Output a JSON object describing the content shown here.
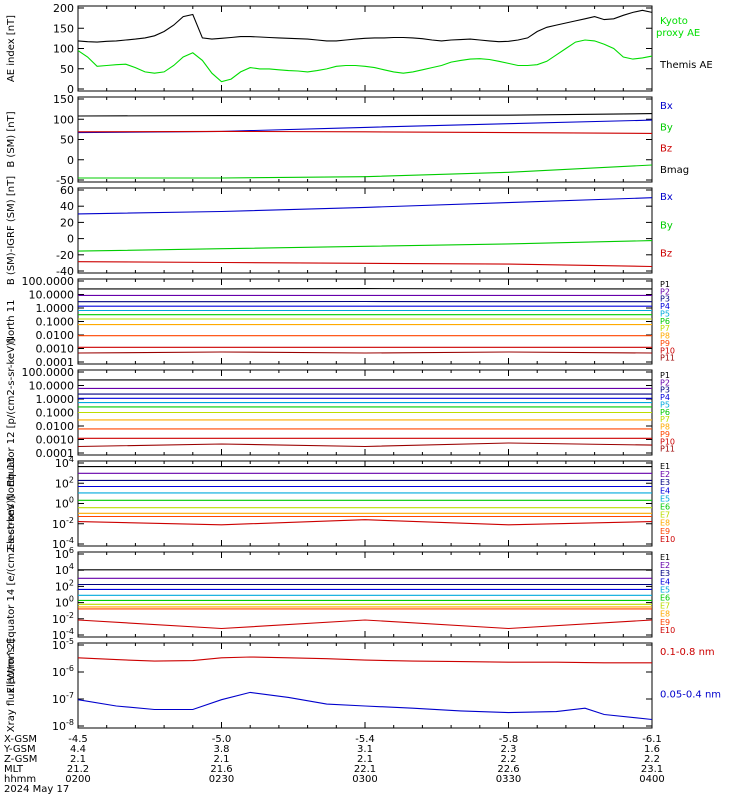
{
  "chart_data": [
    {
      "type": "line",
      "ylabel": "AE index [nT]",
      "yticks": [
        "200",
        "150",
        "100",
        "50",
        "0"
      ],
      "ylim": [
        0,
        200
      ],
      "series": [
        {
          "name": "Kyoto proxy AE",
          "color": "#00dd00",
          "x": [
            0,
            2,
            4,
            6,
            8,
            10,
            12,
            14,
            16,
            18,
            20,
            22,
            24,
            26,
            28,
            30,
            32,
            34,
            36,
            38,
            40,
            42,
            44,
            46,
            48,
            50,
            52,
            54,
            56,
            58,
            60,
            62,
            64,
            66,
            68,
            70,
            72,
            74,
            76,
            78,
            80,
            82,
            84,
            86,
            88,
            90,
            92,
            94,
            96,
            98,
            100,
            102,
            104,
            106,
            108,
            110,
            112,
            114,
            116,
            118,
            120
          ],
          "values": [
            95,
            80,
            58,
            60,
            62,
            63,
            55,
            45,
            42,
            45,
            60,
            80,
            90,
            72,
            42,
            22,
            28,
            45,
            55,
            52,
            52,
            50,
            48,
            47,
            45,
            48,
            52,
            58,
            60,
            60,
            58,
            55,
            50,
            45,
            42,
            45,
            50,
            55,
            60,
            68,
            72,
            75,
            76,
            74,
            70,
            65,
            60,
            60,
            62,
            70,
            85,
            100,
            115,
            120,
            118,
            110,
            100,
            80,
            75,
            78,
            82
          ]
        },
        {
          "name": "Themis AE",
          "color": "#000000",
          "x": [
            0,
            2,
            4,
            6,
            8,
            10,
            12,
            14,
            16,
            18,
            20,
            22,
            24,
            26,
            28,
            30,
            32,
            34,
            36,
            38,
            40,
            42,
            44,
            46,
            48,
            50,
            52,
            54,
            56,
            58,
            60,
            62,
            64,
            66,
            68,
            70,
            72,
            74,
            76,
            78,
            80,
            82,
            84,
            86,
            88,
            90,
            92,
            94,
            96,
            98,
            100,
            102,
            104,
            106,
            108,
            110,
            112,
            114,
            116,
            118,
            120
          ],
          "values": [
            118,
            116,
            115,
            117,
            118,
            120,
            122,
            125,
            130,
            140,
            155,
            175,
            180,
            125,
            122,
            124,
            126,
            128,
            128,
            127,
            126,
            125,
            124,
            123,
            122,
            120,
            118,
            118,
            120,
            122,
            124,
            125,
            125,
            126,
            126,
            125,
            123,
            120,
            118,
            120,
            121,
            122,
            120,
            118,
            116,
            117,
            120,
            125,
            140,
            150,
            155,
            160,
            165,
            170,
            175,
            168,
            170,
            178,
            185,
            190,
            185
          ]
        }
      ]
    },
    {
      "type": "line",
      "ylabel": "B (SM) [nT]",
      "yticks": [
        "150",
        "100",
        "50",
        "0",
        "-50"
      ],
      "ylim": [
        -60,
        150
      ],
      "series": [
        {
          "name": "Bx",
          "color": "#0000cc",
          "x": [
            0,
            30,
            60,
            90,
            120
          ],
          "values": [
            62,
            65,
            75,
            84,
            93
          ]
        },
        {
          "name": "By",
          "color": "#00cc00",
          "x": [
            0,
            30,
            60,
            90,
            120
          ],
          "values": [
            -50,
            -50,
            -47,
            -36,
            -18
          ]
        },
        {
          "name": "Bz",
          "color": "#cc0000",
          "x": [
            0,
            30,
            60,
            90,
            120
          ],
          "values": [
            64,
            65,
            64,
            62,
            60
          ]
        },
        {
          "name": "Bmag",
          "color": "#000000",
          "x": [
            0,
            30,
            60,
            90,
            120
          ],
          "values": [
            103,
            104,
            104,
            105,
            109
          ]
        }
      ]
    },
    {
      "type": "line",
      "ylabel": "B (SM)-IGRF (SM) [nT]",
      "yticks": [
        "60",
        "40",
        "20",
        "0",
        "-20",
        "-40"
      ],
      "ylim": [
        -45,
        60
      ],
      "series": [
        {
          "name": "Bx",
          "color": "#0000cc",
          "x": [
            0,
            30,
            60,
            90,
            120
          ],
          "values": [
            28,
            31,
            36,
            42,
            48
          ]
        },
        {
          "name": "By",
          "color": "#00cc00",
          "x": [
            0,
            30,
            60,
            90,
            120
          ],
          "values": [
            -18,
            -15,
            -12,
            -9,
            -5
          ]
        },
        {
          "name": "Bz",
          "color": "#cc0000",
          "x": [
            0,
            30,
            60,
            90,
            120
          ],
          "values": [
            -31,
            -32,
            -33,
            -34,
            -37
          ]
        }
      ]
    },
    {
      "type": "line",
      "ylabel": "North 11",
      "yscale": "log",
      "yticks": [
        "100.0000",
        "10.0000",
        "1.0000",
        "0.1000",
        "0.0100",
        "0.0010",
        "0.0001"
      ],
      "ylim": [
        0.0001,
        100
      ],
      "series": [
        {
          "name": "P1",
          "color": "#000000",
          "values": [
            20,
            20,
            21,
            20,
            20
          ]
        },
        {
          "name": "P2",
          "color": "#6600aa",
          "values": [
            7,
            7,
            7,
            7,
            7
          ]
        },
        {
          "name": "P3",
          "color": "#000080",
          "values": [
            2.5,
            2.5,
            2.6,
            2.5,
            2.5
          ]
        },
        {
          "name": "P4",
          "color": "#0000dd",
          "values": [
            1.2,
            1.2,
            1.2,
            1.2,
            1.2
          ]
        },
        {
          "name": "P5",
          "color": "#00aadd",
          "values": [
            0.6,
            0.6,
            0.6,
            0.6,
            0.6
          ]
        },
        {
          "name": "P6",
          "color": "#00cc00",
          "values": [
            0.3,
            0.3,
            0.3,
            0.3,
            0.3
          ]
        },
        {
          "name": "P7",
          "color": "#bbdd00",
          "values": [
            0.15,
            0.15,
            0.15,
            0.15,
            0.15
          ]
        },
        {
          "name": "P8",
          "color": "#ffaa00",
          "values": [
            0.06,
            0.06,
            0.06,
            0.06,
            0.06
          ]
        },
        {
          "name": "P9",
          "color": "#ff4400",
          "values": [
            0.01,
            0.01,
            0.01,
            0.01,
            0.01
          ]
        },
        {
          "name": "P10",
          "color": "#cc0000",
          "values": [
            0.0015,
            0.0015,
            0.0015,
            0.0015,
            0.0015
          ]
        },
        {
          "name": "P11",
          "color": "#990000",
          "values": [
            0.0006,
            0.0007,
            0.0006,
            0.0007,
            0.0006
          ]
        }
      ]
    },
    {
      "type": "line",
      "ylabel": "Equator 12 [p/(cm2-s-sr-keV)]",
      "yscale": "log",
      "yticks": [
        "100.0000",
        "10.0000",
        "1.0000",
        "0.1000",
        "0.0100",
        "0.0010",
        "0.0001"
      ],
      "ylim": [
        0.0001,
        100
      ],
      "series": [
        {
          "name": "P1",
          "color": "#000000",
          "values": [
            20,
            20,
            20,
            20,
            20
          ]
        },
        {
          "name": "P2",
          "color": "#6600aa",
          "values": [
            5,
            5,
            5,
            5,
            5
          ]
        },
        {
          "name": "P3",
          "color": "#000080",
          "values": [
            2,
            2,
            2,
            2,
            2
          ]
        },
        {
          "name": "P4",
          "color": "#0000dd",
          "values": [
            1,
            1,
            1,
            1,
            1
          ]
        },
        {
          "name": "P5",
          "color": "#00aadd",
          "values": [
            0.5,
            0.5,
            0.5,
            0.5,
            0.5
          ]
        },
        {
          "name": "P6",
          "color": "#00cc00",
          "values": [
            0.25,
            0.25,
            0.25,
            0.25,
            0.25
          ]
        },
        {
          "name": "P7",
          "color": "#bbdd00",
          "values": [
            0.1,
            0.1,
            0.1,
            0.1,
            0.1
          ]
        },
        {
          "name": "P8",
          "color": "#ffaa00",
          "values": [
            0.03,
            0.03,
            0.03,
            0.03,
            0.03
          ]
        },
        {
          "name": "P9",
          "color": "#ff4400",
          "values": [
            0.007,
            0.007,
            0.007,
            0.007,
            0.007
          ]
        },
        {
          "name": "P10",
          "color": "#cc0000",
          "values": [
            0.0015,
            0.0015,
            0.0015,
            0.0015,
            0.0015
          ]
        },
        {
          "name": "P11",
          "color": "#990000",
          "values": [
            0.0004,
            0.0006,
            0.0004,
            0.0007,
            0.0005
          ]
        }
      ]
    },
    {
      "type": "line",
      "ylabel": "Electrons North 13",
      "yscale": "log",
      "yticks": [
        "10^4",
        "10^2",
        "10^0",
        "10^-2",
        "10^-4"
      ],
      "ylim": [
        0.0001,
        10000
      ],
      "series": [
        {
          "name": "E1",
          "color": "#000000",
          "values": [
            3000,
            3000,
            3000,
            3000,
            3000
          ]
        },
        {
          "name": "E2",
          "color": "#6600aa",
          "values": [
            700,
            700,
            700,
            700,
            700
          ]
        },
        {
          "name": "E3",
          "color": "#000080",
          "values": [
            150,
            150,
            150,
            150,
            150
          ]
        },
        {
          "name": "E4",
          "color": "#0000dd",
          "values": [
            40,
            40,
            40,
            40,
            40
          ]
        },
        {
          "name": "E5",
          "color": "#00aadd",
          "values": [
            10,
            10,
            10,
            10,
            10
          ]
        },
        {
          "name": "E6",
          "color": "#00cc00",
          "values": [
            2,
            2,
            2,
            2,
            2
          ]
        },
        {
          "name": "E7",
          "color": "#bbdd00",
          "values": [
            0.4,
            0.4,
            0.4,
            0.4,
            0.4
          ]
        },
        {
          "name": "E8",
          "color": "#ffaa00",
          "values": [
            0.12,
            0.12,
            0.12,
            0.12,
            0.12
          ]
        },
        {
          "name": "E9",
          "color": "#ff4400",
          "values": [
            0.06,
            0.06,
            0.06,
            0.06,
            0.06
          ]
        },
        {
          "name": "E10",
          "color": "#cc0000",
          "values": [
            0.02,
            0.01,
            0.03,
            0.01,
            0.02
          ]
        }
      ]
    },
    {
      "type": "line",
      "ylabel": "Electrons Equator 14 [e/(cm2-s-sr-keV)]",
      "yscale": "log",
      "yticks": [
        "10^6",
        "10^4",
        "10^2",
        "10^0",
        "10^-2",
        "10^-4"
      ],
      "ylim": [
        0.0001,
        1000000
      ],
      "series": [
        {
          "name": "E1",
          "color": "#000000",
          "values": [
            8000,
            8000,
            8000,
            8000,
            8000
          ]
        },
        {
          "name": "E2",
          "color": "#6600aa",
          "values": [
            800,
            800,
            800,
            800,
            800
          ]
        },
        {
          "name": "E3",
          "color": "#000080",
          "values": [
            150,
            150,
            150,
            150,
            150
          ]
        },
        {
          "name": "E4",
          "color": "#0000dd",
          "values": [
            40,
            40,
            40,
            40,
            40
          ]
        },
        {
          "name": "E5",
          "color": "#00aadd",
          "values": [
            8,
            8,
            8,
            8,
            8
          ]
        },
        {
          "name": "E6",
          "color": "#00cc00",
          "values": [
            2,
            2,
            2,
            2,
            2
          ]
        },
        {
          "name": "E7",
          "color": "#bbdd00",
          "values": [
            0.7,
            0.7,
            0.7,
            0.7,
            0.7
          ]
        },
        {
          "name": "E8",
          "color": "#ffaa00",
          "values": [
            0.35,
            0.35,
            0.35,
            0.35,
            0.35
          ]
        },
        {
          "name": "E9",
          "color": "#ff4400",
          "values": [
            0.2,
            0.2,
            0.2,
            0.2,
            0.2
          ]
        },
        {
          "name": "E10",
          "color": "#cc0000",
          "values": [
            0.01,
            0.001,
            0.01,
            0.001,
            0.01
          ]
        }
      ]
    },
    {
      "type": "line",
      "ylabel": "Xray flux [W/m^2]",
      "yscale": "log",
      "yticks": [
        "10^-5",
        "10^-6",
        "10^-7",
        "10^-8"
      ],
      "ylim": [
        1e-08,
        1e-05
      ],
      "series": [
        {
          "name": "0.1-0.8 nm",
          "color": "#cc0000",
          "x": [
            0,
            8,
            16,
            24,
            30,
            36,
            44,
            52,
            60,
            70,
            80,
            90,
            100,
            110,
            120
          ],
          "values": [
            3e-06,
            2.6e-06,
            2.3e-06,
            2.4e-06,
            3e-06,
            3.2e-06,
            3e-06,
            2.8e-06,
            2.5e-06,
            2.3e-06,
            2.2e-06,
            2.1e-06,
            2.1e-06,
            2e-06,
            2e-06
          ]
        },
        {
          "name": "0.05-0.4 nm",
          "color": "#0000cc",
          "x": [
            0,
            8,
            16,
            24,
            30,
            36,
            44,
            52,
            60,
            70,
            80,
            90,
            100,
            106,
            110,
            120
          ],
          "values": [
            1e-07,
            6e-08,
            4.5e-08,
            4.5e-08,
            1e-07,
            1.8e-07,
            1.2e-07,
            7e-08,
            6e-08,
            5e-08,
            4e-08,
            3.5e-08,
            3.8e-08,
            5e-08,
            3e-08,
            2e-08
          ]
        }
      ]
    }
  ],
  "axis_rows": [
    {
      "label": "X-GSM",
      "values": [
        "-4.5",
        "-5.0",
        "-5.4",
        "-5.8",
        "-6.1"
      ]
    },
    {
      "label": "Y-GSM",
      "values": [
        "4.4",
        "3.8",
        "3.1",
        "2.3",
        "1.6"
      ]
    },
    {
      "label": "Z-GSM",
      "values": [
        "2.1",
        "2.1",
        "2.1",
        "2.2",
        "2.2"
      ]
    },
    {
      "label": "MLT",
      "values": [
        "21.2",
        "21.6",
        "22.1",
        "22.6",
        "23.1"
      ]
    },
    {
      "label": "hhmm",
      "values": [
        "0200",
        "0230",
        "0300",
        "0330",
        "0400"
      ]
    }
  ],
  "date_label": "2024 May 17"
}
